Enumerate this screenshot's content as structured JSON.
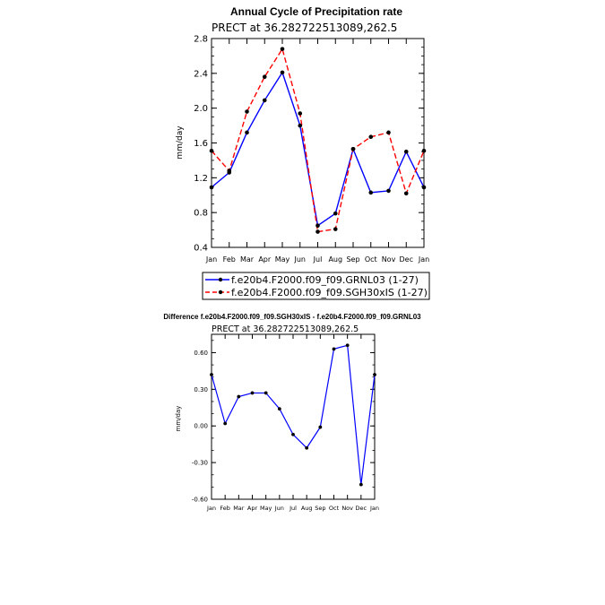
{
  "colors": {
    "series_blue": "#0000ff",
    "series_red": "#ff0000",
    "marker": "#000000"
  },
  "chart_data": [
    {
      "type": "line",
      "title": "Annual Cycle of Precipitation rate",
      "subtitle": "PRECT at 36.282722513089,262.5",
      "ylabel": "mm/day",
      "xlabel": "",
      "ylim": [
        0.4,
        2.8
      ],
      "yticks": [
        "0.4",
        "0.8",
        "1.2",
        "1.6",
        "2.0",
        "2.4",
        "2.8"
      ],
      "categories": [
        "Jan",
        "Feb",
        "Mar",
        "Apr",
        "May",
        "Jun",
        "Jul",
        "Aug",
        "Sep",
        "Oct",
        "Nov",
        "Dec",
        "Jan"
      ],
      "grid": false,
      "legend_position": "bottom",
      "series": [
        {
          "name": "f.e20b4.F2000.f09_f09.GRNL03 (1-27)",
          "color": "#0000ff",
          "dash": "solid",
          "values": [
            1.09,
            1.26,
            1.72,
            2.09,
            2.41,
            1.8,
            0.65,
            0.79,
            1.53,
            1.03,
            1.05,
            1.5,
            1.09
          ]
        },
        {
          "name": "f.e20b4.F2000.f09_f09.SGH30xIS (1-27)",
          "color": "#ff0000",
          "dash": "dashed",
          "values": [
            1.51,
            1.28,
            1.96,
            2.36,
            2.68,
            1.94,
            0.58,
            0.61,
            1.53,
            1.67,
            1.72,
            1.02,
            1.51
          ]
        }
      ]
    },
    {
      "type": "line",
      "title": "Difference f.e20b4.F2000.f09_f09.SGH30xIS - f.e20b4.F2000.f09_f09.GRNL03",
      "subtitle": "PRECT at 36.282722513089,262.5",
      "ylabel": "mm/day",
      "xlabel": "",
      "ylim": [
        -0.6,
        0.75
      ],
      "yticks": [
        "-0.60",
        "-0.30",
        "0.00",
        "0.30",
        "0.60"
      ],
      "categories": [
        "Jan",
        "Feb",
        "Mar",
        "Apr",
        "May",
        "Jun",
        "Jul",
        "Aug",
        "Sep",
        "Oct",
        "Nov",
        "Dec",
        "Jan"
      ],
      "grid": false,
      "series": [
        {
          "color": "#0000ff",
          "dash": "solid",
          "values": [
            0.42,
            0.02,
            0.24,
            0.27,
            0.27,
            0.14,
            -0.07,
            -0.18,
            -0.01,
            0.63,
            0.66,
            -0.48,
            0.42
          ]
        }
      ]
    }
  ]
}
